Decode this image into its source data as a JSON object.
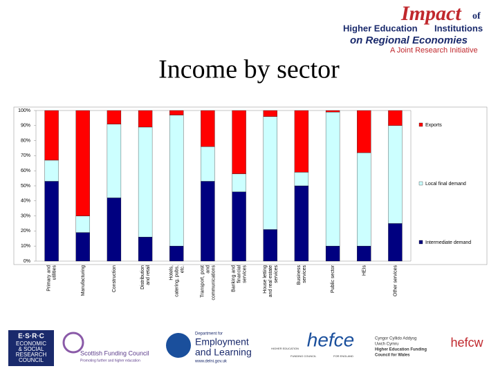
{
  "header": {
    "brand": "Impact",
    "brand_suffix": "of",
    "line1": "Higher Education",
    "line1b": "Institutions",
    "line2": "on Regional Economies",
    "tagline": "A Joint Research Initiative"
  },
  "chart_data": {
    "type": "stacked_bar",
    "title": "Income by sector",
    "categories": [
      "Primary and utilities",
      "Manufacturing",
      "Construction",
      "Distribution and retail",
      "Hotels, catering, pubs, etc.",
      "Transport, post and communications",
      "Banking and financial services",
      "House letting and real estate services",
      "Business services",
      "Public sector",
      "HEIs",
      "Other services"
    ],
    "series": [
      {
        "name": "Intermediate demand",
        "color": "#000080",
        "values": [
          53,
          19,
          42,
          16,
          10,
          53,
          46,
          21,
          50,
          10,
          10,
          25
        ]
      },
      {
        "name": "Local final demand",
        "color": "#ccffff",
        "values": [
          14,
          11,
          49,
          73,
          87,
          23,
          12,
          75,
          9,
          89,
          62,
          65
        ]
      },
      {
        "name": "Exports",
        "color": "#ff0000",
        "values": [
          33,
          70,
          9,
          11,
          3,
          24,
          42,
          4,
          41,
          1,
          28,
          10
        ]
      }
    ],
    "ylim": [
      0,
      100
    ],
    "yticks": [
      {
        "value": 0,
        "label": "0%"
      },
      {
        "value": 10,
        "label": "10%"
      },
      {
        "value": 20,
        "label": "20%"
      },
      {
        "value": 30,
        "label": "30%"
      },
      {
        "value": 40,
        "label": "40%"
      },
      {
        "value": 50,
        "label": "50%"
      },
      {
        "value": 60,
        "label": "60%"
      },
      {
        "value": 70,
        "label": "70%"
      },
      {
        "value": 80,
        "label": "80%"
      },
      {
        "value": 90,
        "label": "90%"
      },
      {
        "value": 100,
        "label": "100%"
      }
    ]
  },
  "logos": {
    "esrc": [
      "E·S·R·C",
      "ECONOMIC",
      "& SOCIAL",
      "RESEARCH",
      "COUNCIL"
    ],
    "sfc": [
      "Scottish Funding Council",
      "Promoting further and higher education"
    ],
    "del": [
      "Department for",
      "Employment",
      "and Learning",
      "www.delni.gov.uk"
    ],
    "hefce": [
      "hefce",
      "HIGHER EDUCATION",
      "FUNDING COUNCIL",
      "FOR ENGLAND"
    ],
    "hefcw": [
      "Cyngor Cyllido Addysg",
      "Uwch Cymru",
      "Higher Education Funding",
      "Council for Wales",
      "hefcw"
    ]
  }
}
